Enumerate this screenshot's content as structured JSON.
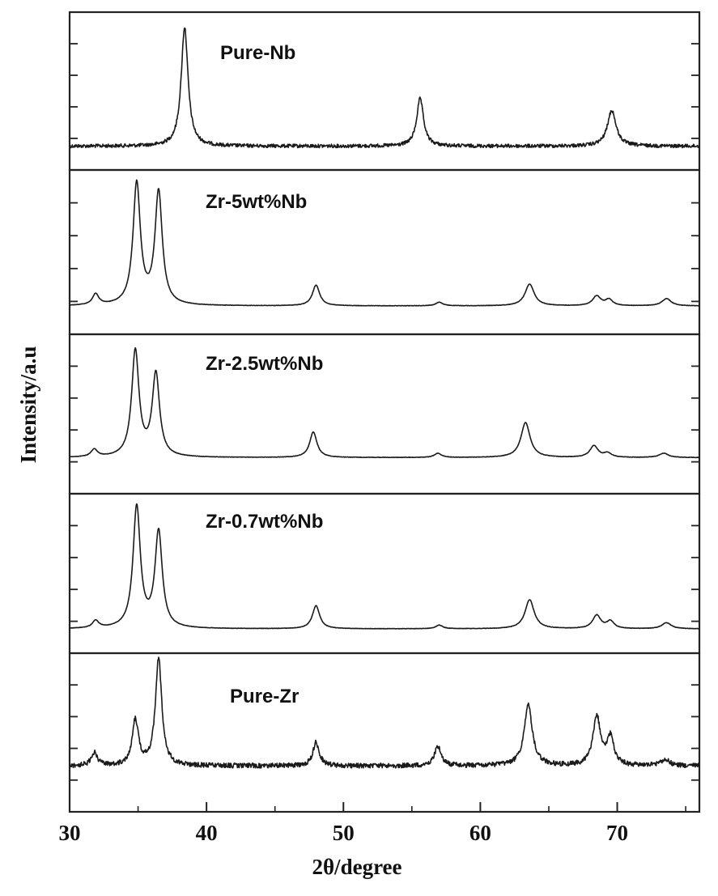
{
  "chart_data": {
    "type": "line",
    "xlabel": "2θ/degree",
    "ylabel": "Intensity/a.u",
    "xlim": [
      30,
      76
    ],
    "x_ticks": [
      30,
      40,
      50,
      60,
      70
    ],
    "x_tick_labels": [
      "30",
      "40",
      "50",
      "60",
      "70"
    ],
    "stacked": true,
    "y_tick_labels_shown": false,
    "series": [
      {
        "name": "Pure-Nb",
        "baseline": 0.03,
        "peaks": [
          {
            "x": 38.4,
            "height": 1.0,
            "width": 0.3
          },
          {
            "x": 55.6,
            "height": 0.4,
            "width": 0.3
          },
          {
            "x": 69.6,
            "height": 0.3,
            "width": 0.38
          }
        ]
      },
      {
        "name": "Zr-5wt%Nb",
        "baseline": 0.02,
        "peaks": [
          {
            "x": 31.9,
            "height": 0.09,
            "width": 0.28
          },
          {
            "x": 34.9,
            "height": 1.0,
            "width": 0.32
          },
          {
            "x": 36.5,
            "height": 0.93,
            "width": 0.32
          },
          {
            "x": 48.0,
            "height": 0.17,
            "width": 0.32
          },
          {
            "x": 57.0,
            "height": 0.03,
            "width": 0.3
          },
          {
            "x": 63.6,
            "height": 0.18,
            "width": 0.4
          },
          {
            "x": 68.5,
            "height": 0.08,
            "width": 0.36
          },
          {
            "x": 69.4,
            "height": 0.05,
            "width": 0.32
          },
          {
            "x": 73.6,
            "height": 0.06,
            "width": 0.4
          }
        ]
      },
      {
        "name": "Zr-2.5wt%Nb",
        "baseline": 0.02,
        "peaks": [
          {
            "x": 31.8,
            "height": 0.07,
            "width": 0.28
          },
          {
            "x": 34.8,
            "height": 1.0,
            "width": 0.32
          },
          {
            "x": 36.3,
            "height": 0.78,
            "width": 0.32
          },
          {
            "x": 47.8,
            "height": 0.24,
            "width": 0.32
          },
          {
            "x": 56.9,
            "height": 0.04,
            "width": 0.3
          },
          {
            "x": 63.3,
            "height": 0.33,
            "width": 0.4
          },
          {
            "x": 68.3,
            "height": 0.11,
            "width": 0.36
          },
          {
            "x": 69.3,
            "height": 0.04,
            "width": 0.32
          },
          {
            "x": 73.4,
            "height": 0.04,
            "width": 0.4
          }
        ]
      },
      {
        "name": "Zr-0.7wt%Nb",
        "baseline": 0.02,
        "peaks": [
          {
            "x": 31.9,
            "height": 0.06,
            "width": 0.28
          },
          {
            "x": 34.9,
            "height": 1.0,
            "width": 0.32
          },
          {
            "x": 36.5,
            "height": 0.79,
            "width": 0.32
          },
          {
            "x": 48.0,
            "height": 0.19,
            "width": 0.32
          },
          {
            "x": 57.0,
            "height": 0.03,
            "width": 0.3
          },
          {
            "x": 63.6,
            "height": 0.24,
            "width": 0.4
          },
          {
            "x": 68.5,
            "height": 0.11,
            "width": 0.36
          },
          {
            "x": 69.5,
            "height": 0.06,
            "width": 0.32
          },
          {
            "x": 73.6,
            "height": 0.05,
            "width": 0.4
          }
        ]
      },
      {
        "name": "Pure-Zr",
        "baseline": 0.05,
        "peaks": [
          {
            "x": 31.8,
            "height": 0.12,
            "width": 0.26
          },
          {
            "x": 34.8,
            "height": 0.42,
            "width": 0.28
          },
          {
            "x": 36.5,
            "height": 1.0,
            "width": 0.28
          },
          {
            "x": 48.0,
            "height": 0.22,
            "width": 0.28
          },
          {
            "x": 56.9,
            "height": 0.18,
            "width": 0.3
          },
          {
            "x": 63.5,
            "height": 0.56,
            "width": 0.36
          },
          {
            "x": 68.5,
            "height": 0.46,
            "width": 0.32
          },
          {
            "x": 69.5,
            "height": 0.26,
            "width": 0.3
          },
          {
            "x": 73.5,
            "height": 0.06,
            "width": 0.38
          }
        ]
      }
    ]
  }
}
